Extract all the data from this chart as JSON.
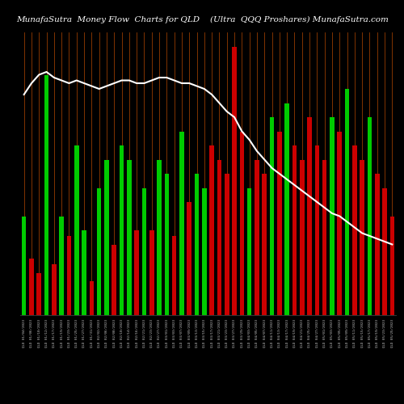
{
  "title_left": "MunafaSutra  Money Flow  Charts for QLD",
  "title_right": "(Ultra  QQQ Proshares) MunafaSutra.com",
  "background_color": "#000000",
  "bar_colors_pattern": [
    "green",
    "red",
    "red",
    "green",
    "red",
    "green",
    "red",
    "green",
    "green",
    "red",
    "green",
    "green",
    "red",
    "green",
    "green",
    "red",
    "green",
    "red",
    "green",
    "green",
    "red",
    "green",
    "red",
    "green",
    "green",
    "red",
    "red",
    "red",
    "red",
    "red",
    "green",
    "red",
    "red",
    "green",
    "red",
    "green",
    "red",
    "red",
    "red",
    "red",
    "red",
    "green",
    "red",
    "green",
    "red",
    "red",
    "green",
    "red",
    "red",
    "red"
  ],
  "bar_heights": [
    35,
    20,
    15,
    85,
    18,
    35,
    28,
    60,
    30,
    12,
    45,
    55,
    25,
    60,
    55,
    30,
    45,
    30,
    55,
    50,
    28,
    65,
    40,
    50,
    45,
    60,
    55,
    50,
    95,
    65,
    45,
    55,
    50,
    70,
    65,
    75,
    60,
    55,
    70,
    60,
    55,
    70,
    65,
    80,
    60,
    55,
    70,
    50,
    45,
    35
  ],
  "line_values": [
    78,
    82,
    85,
    86,
    84,
    83,
    82,
    83,
    82,
    81,
    80,
    81,
    82,
    83,
    83,
    82,
    82,
    83,
    84,
    84,
    83,
    82,
    82,
    81,
    80,
    78,
    75,
    72,
    70,
    65,
    62,
    58,
    55,
    52,
    50,
    48,
    46,
    44,
    42,
    40,
    38,
    36,
    35,
    33,
    31,
    29,
    28,
    27,
    26,
    25
  ],
  "tick_labels": [
    "QLD 01/04/2023",
    "QLD 01/06/2023",
    "QLD 01/10/2023",
    "QLD 01/12/2023",
    "QLD 01/17/2023",
    "QLD 01/19/2023",
    "QLD 01/23/2023",
    "QLD 01/25/2023",
    "QLD 01/27/2023",
    "QLD 01/31/2023",
    "QLD 02/02/2023",
    "QLD 02/06/2023",
    "QLD 02/08/2023",
    "QLD 02/10/2023",
    "QLD 02/14/2023",
    "QLD 02/16/2023",
    "QLD 02/21/2023",
    "QLD 02/23/2023",
    "QLD 02/27/2023",
    "QLD 03/01/2023",
    "QLD 03/03/2023",
    "QLD 03/07/2023",
    "QLD 03/09/2023",
    "QLD 03/13/2023",
    "QLD 03/15/2023",
    "QLD 03/17/2023",
    "QLD 03/21/2023",
    "QLD 03/23/2023",
    "QLD 03/27/2023",
    "QLD 03/29/2023",
    "QLD 04/03/2023",
    "QLD 04/05/2023",
    "QLD 04/07/2023",
    "QLD 04/11/2023",
    "QLD 04/13/2023",
    "QLD 04/17/2023",
    "QLD 04/19/2023",
    "QLD 04/21/2023",
    "QLD 04/25/2023",
    "QLD 04/27/2023",
    "QLD 05/01/2023",
    "QLD 05/03/2023",
    "QLD 05/05/2023",
    "QLD 05/09/2023",
    "QLD 05/11/2023",
    "QLD 05/15/2023",
    "QLD 05/17/2023",
    "QLD 05/19/2023",
    "QLD 05/23/2023",
    "QLD 05/25/2023"
  ],
  "orange_line_color": "#ff6600",
  "white_line_color": "#ffffff",
  "green_bar_color": "#00cc00",
  "red_bar_color": "#cc0000",
  "title_color": "#ffffff",
  "title_fontsize": 7.5,
  "n_bars": 50,
  "ylim_bars": [
    0,
    100
  ],
  "line_ylim": [
    0,
    100
  ]
}
